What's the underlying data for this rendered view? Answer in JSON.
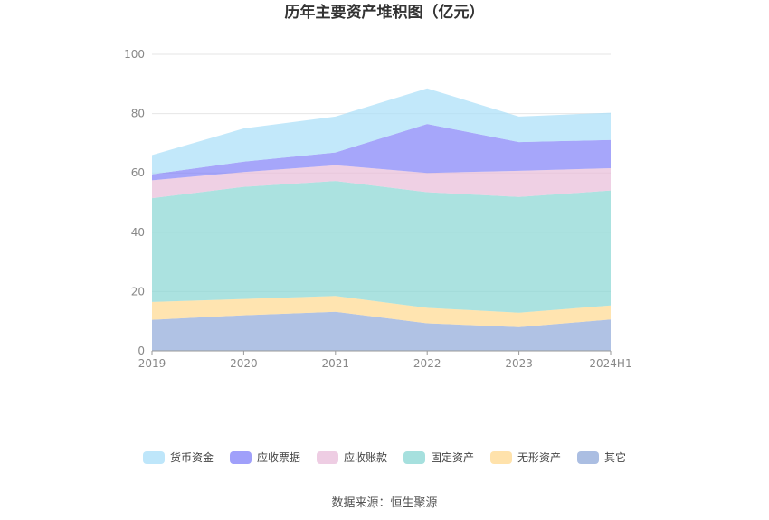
{
  "chart_data": {
    "type": "area",
    "stacked": true,
    "title": "历年主要资产堆积图（亿元）",
    "categories": [
      "2019",
      "2020",
      "2021",
      "2022",
      "2023",
      "2024H1"
    ],
    "ylim": [
      0,
      100
    ],
    "yticks": [
      0,
      20,
      40,
      60,
      80,
      100
    ],
    "grid": true,
    "legend_position": "bottom",
    "series": [
      {
        "name": "其它",
        "color": "#8fa8d8",
        "values": [
          10.5,
          12.0,
          13.2,
          9.3,
          8.0,
          10.6
        ]
      },
      {
        "name": "无形资产",
        "color": "#ffd88f",
        "values": [
          6.0,
          5.5,
          5.3,
          5.2,
          4.9,
          4.7
        ]
      },
      {
        "name": "固定资产",
        "color": "#88d6d3",
        "values": [
          35.0,
          37.8,
          38.8,
          39.0,
          39.0,
          38.8
        ]
      },
      {
        "name": "应收账款",
        "color": "#e8bcd9",
        "values": [
          6.0,
          5.0,
          5.3,
          6.5,
          8.8,
          7.5
        ]
      },
      {
        "name": "应收票据",
        "color": "#8080f8",
        "values": [
          2.0,
          3.5,
          4.3,
          16.5,
          9.7,
          9.5
        ]
      },
      {
        "name": "货币资金",
        "color": "#a8def8",
        "values": [
          6.5,
          11.2,
          12.1,
          12.0,
          8.6,
          9.2
        ]
      }
    ]
  },
  "legend_order": [
    "货币资金",
    "应收票据",
    "应收账款",
    "固定资产",
    "无形资产",
    "其它"
  ],
  "source": "数据来源：恒生聚源"
}
